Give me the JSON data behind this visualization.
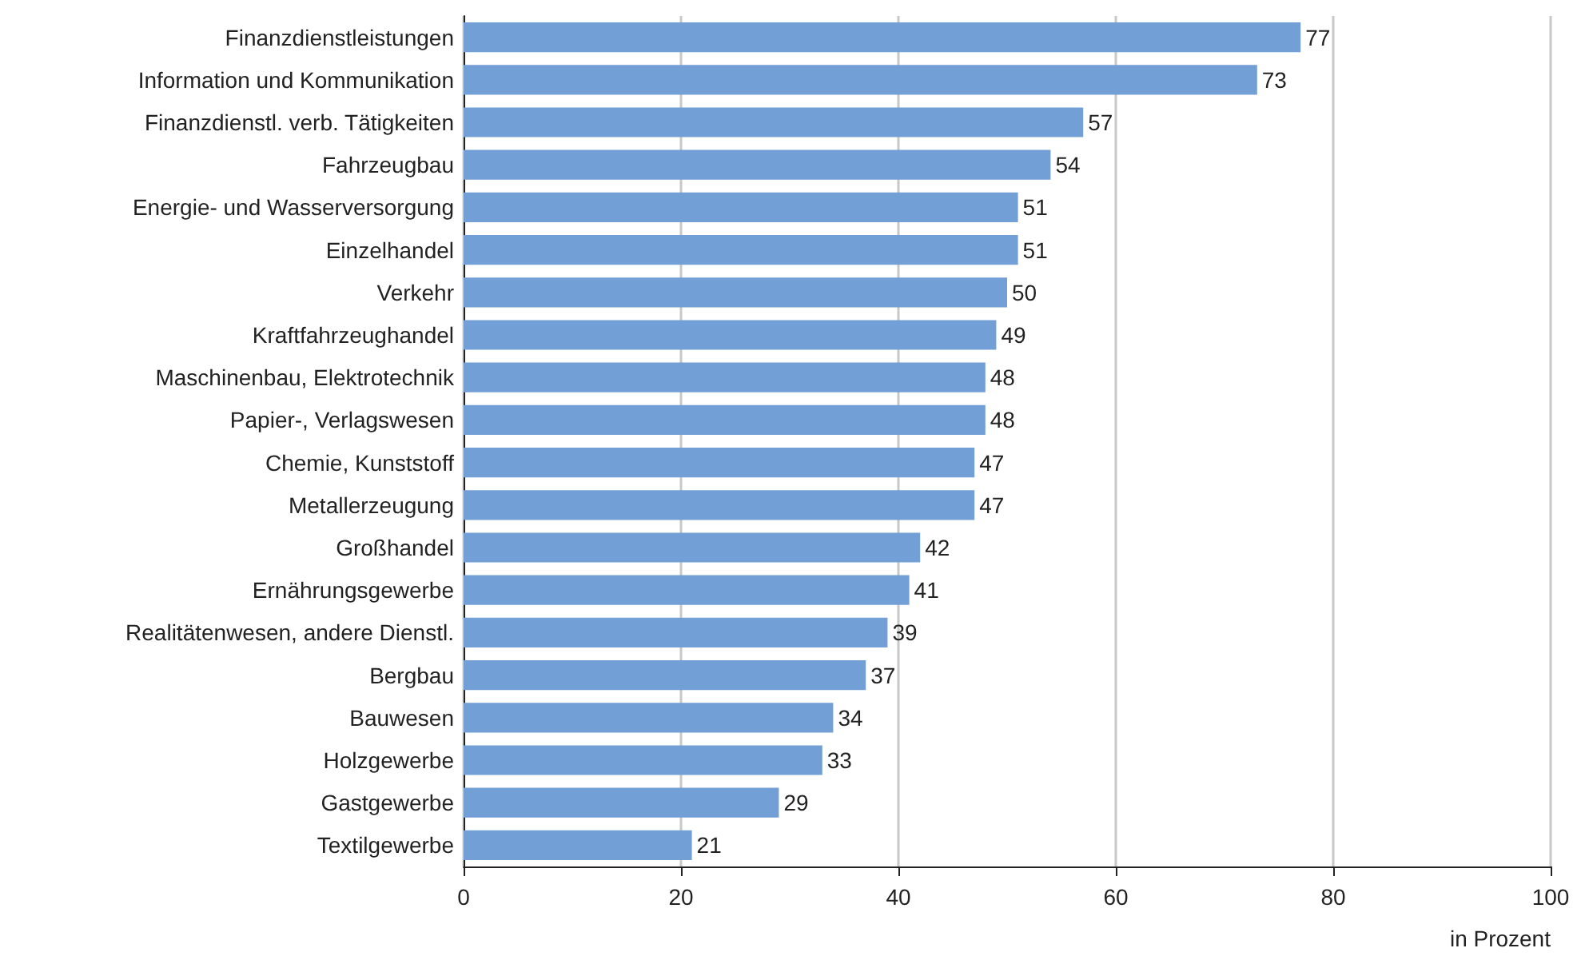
{
  "chart_data": {
    "type": "bar",
    "orientation": "horizontal",
    "xlabel": "in Prozent",
    "categories": [
      "Finanzdienstleistungen",
      "Information und Kommunikation",
      "Finanzdienstl. verb. Tätigkeiten",
      "Fahrzeugbau",
      "Energie- und Wasserversorgung",
      "Einzelhandel",
      "Verkehr",
      "Kraftfahrzeughandel",
      "Maschinenbau, Elektrotechnik",
      "Papier-, Verlagswesen",
      "Chemie, Kunststoff",
      "Metallerzeugung",
      "Großhandel",
      "Ernährungsgewerbe",
      "Realitätenwesen, andere Dienstl.",
      "Bergbau",
      "Bauwesen",
      "Holzgewerbe",
      "Gastgewerbe",
      "Textilgewerbe"
    ],
    "values": [
      77,
      73,
      57,
      54,
      51,
      51,
      50,
      49,
      48,
      48,
      47,
      47,
      42,
      41,
      39,
      37,
      34,
      33,
      29,
      21
    ],
    "color": "#729fd5",
    "xlim": [
      0,
      100
    ],
    "xticks": [
      0,
      20,
      40,
      60,
      80,
      100
    ],
    "grid": "x",
    "data_labels": true
  }
}
